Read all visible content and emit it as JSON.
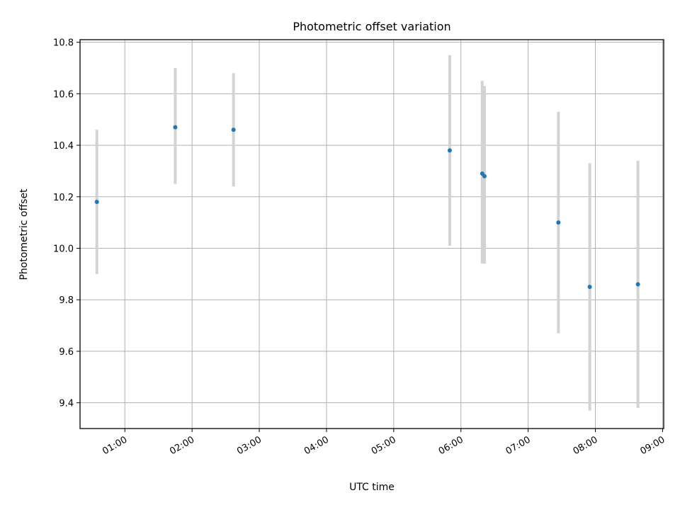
{
  "chart_data": {
    "type": "scatter",
    "title": "Photometric offset variation",
    "xlabel": "UTC time",
    "ylabel": "Photometric offset",
    "xlim": [
      "00:20",
      "09:01"
    ],
    "ylim": [
      9.3,
      10.81
    ],
    "grid": true,
    "xticks": [
      "01:00",
      "02:00",
      "03:00",
      "04:00",
      "05:00",
      "06:00",
      "07:00",
      "08:00",
      "09:00"
    ],
    "yticks": [
      "9.4",
      "9.6",
      "9.8",
      "10.0",
      "10.2",
      "10.4",
      "10.6",
      "10.8"
    ],
    "point_color": "#1f77b4",
    "errorbar_color": "#d3d3d3",
    "points": [
      {
        "x": "00:35",
        "y": 10.18,
        "yerr_low": 9.9,
        "yerr_high": 10.46
      },
      {
        "x": "01:45",
        "y": 10.47,
        "yerr_low": 10.25,
        "yerr_high": 10.7
      },
      {
        "x": "02:37",
        "y": 10.46,
        "yerr_low": 10.24,
        "yerr_high": 10.68
      },
      {
        "x": "05:50",
        "y": 10.38,
        "yerr_low": 10.01,
        "yerr_high": 10.75
      },
      {
        "x": "06:19",
        "y": 10.29,
        "yerr_low": 9.94,
        "yerr_high": 10.65
      },
      {
        "x": "06:21",
        "y": 10.28,
        "yerr_low": 9.94,
        "yerr_high": 10.63
      },
      {
        "x": "07:27",
        "y": 10.1,
        "yerr_low": 9.67,
        "yerr_high": 10.53
      },
      {
        "x": "07:55",
        "y": 9.85,
        "yerr_low": 9.37,
        "yerr_high": 10.33
      },
      {
        "x": "08:38",
        "y": 9.86,
        "yerr_low": 9.38,
        "yerr_high": 10.34
      }
    ]
  }
}
